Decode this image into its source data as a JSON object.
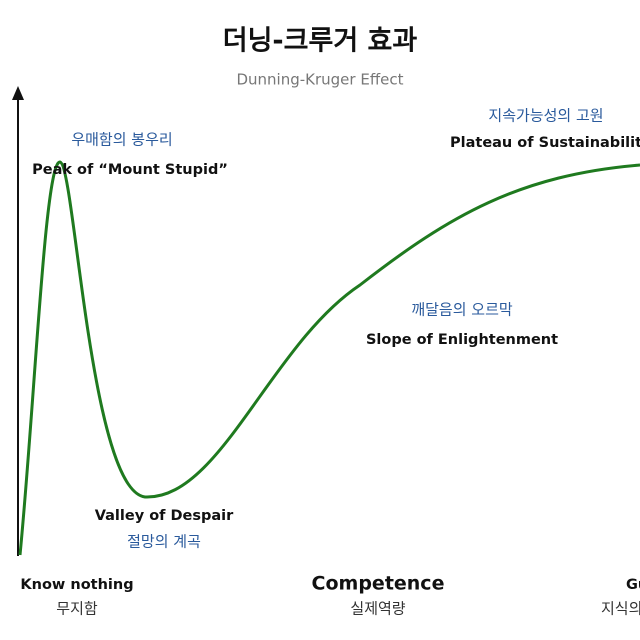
{
  "header": {
    "title": "더닝-크루거 효과",
    "subtitle": "Dunning-Kruger Effect"
  },
  "stages": [
    {
      "label_ko": "우매함의 봉우리",
      "label_en": "Peak of “Mount Stupid”"
    },
    {
      "label_ko": "절망의 계곡",
      "label_en": "Valley of Despair"
    },
    {
      "label_ko": "깨달음의 오르막",
      "label_en": "Slope of Enlightenment"
    },
    {
      "label_ko": "지속가능성의 고원",
      "label_en": "Plateau of Sustainabilit"
    }
  ],
  "x_axis": {
    "title_en": "Competence",
    "title_ko": "실제역량",
    "left_en": "Know nothing",
    "left_ko": "무지함",
    "right_en": "Gu",
    "right_ko": "지식의"
  }
}
